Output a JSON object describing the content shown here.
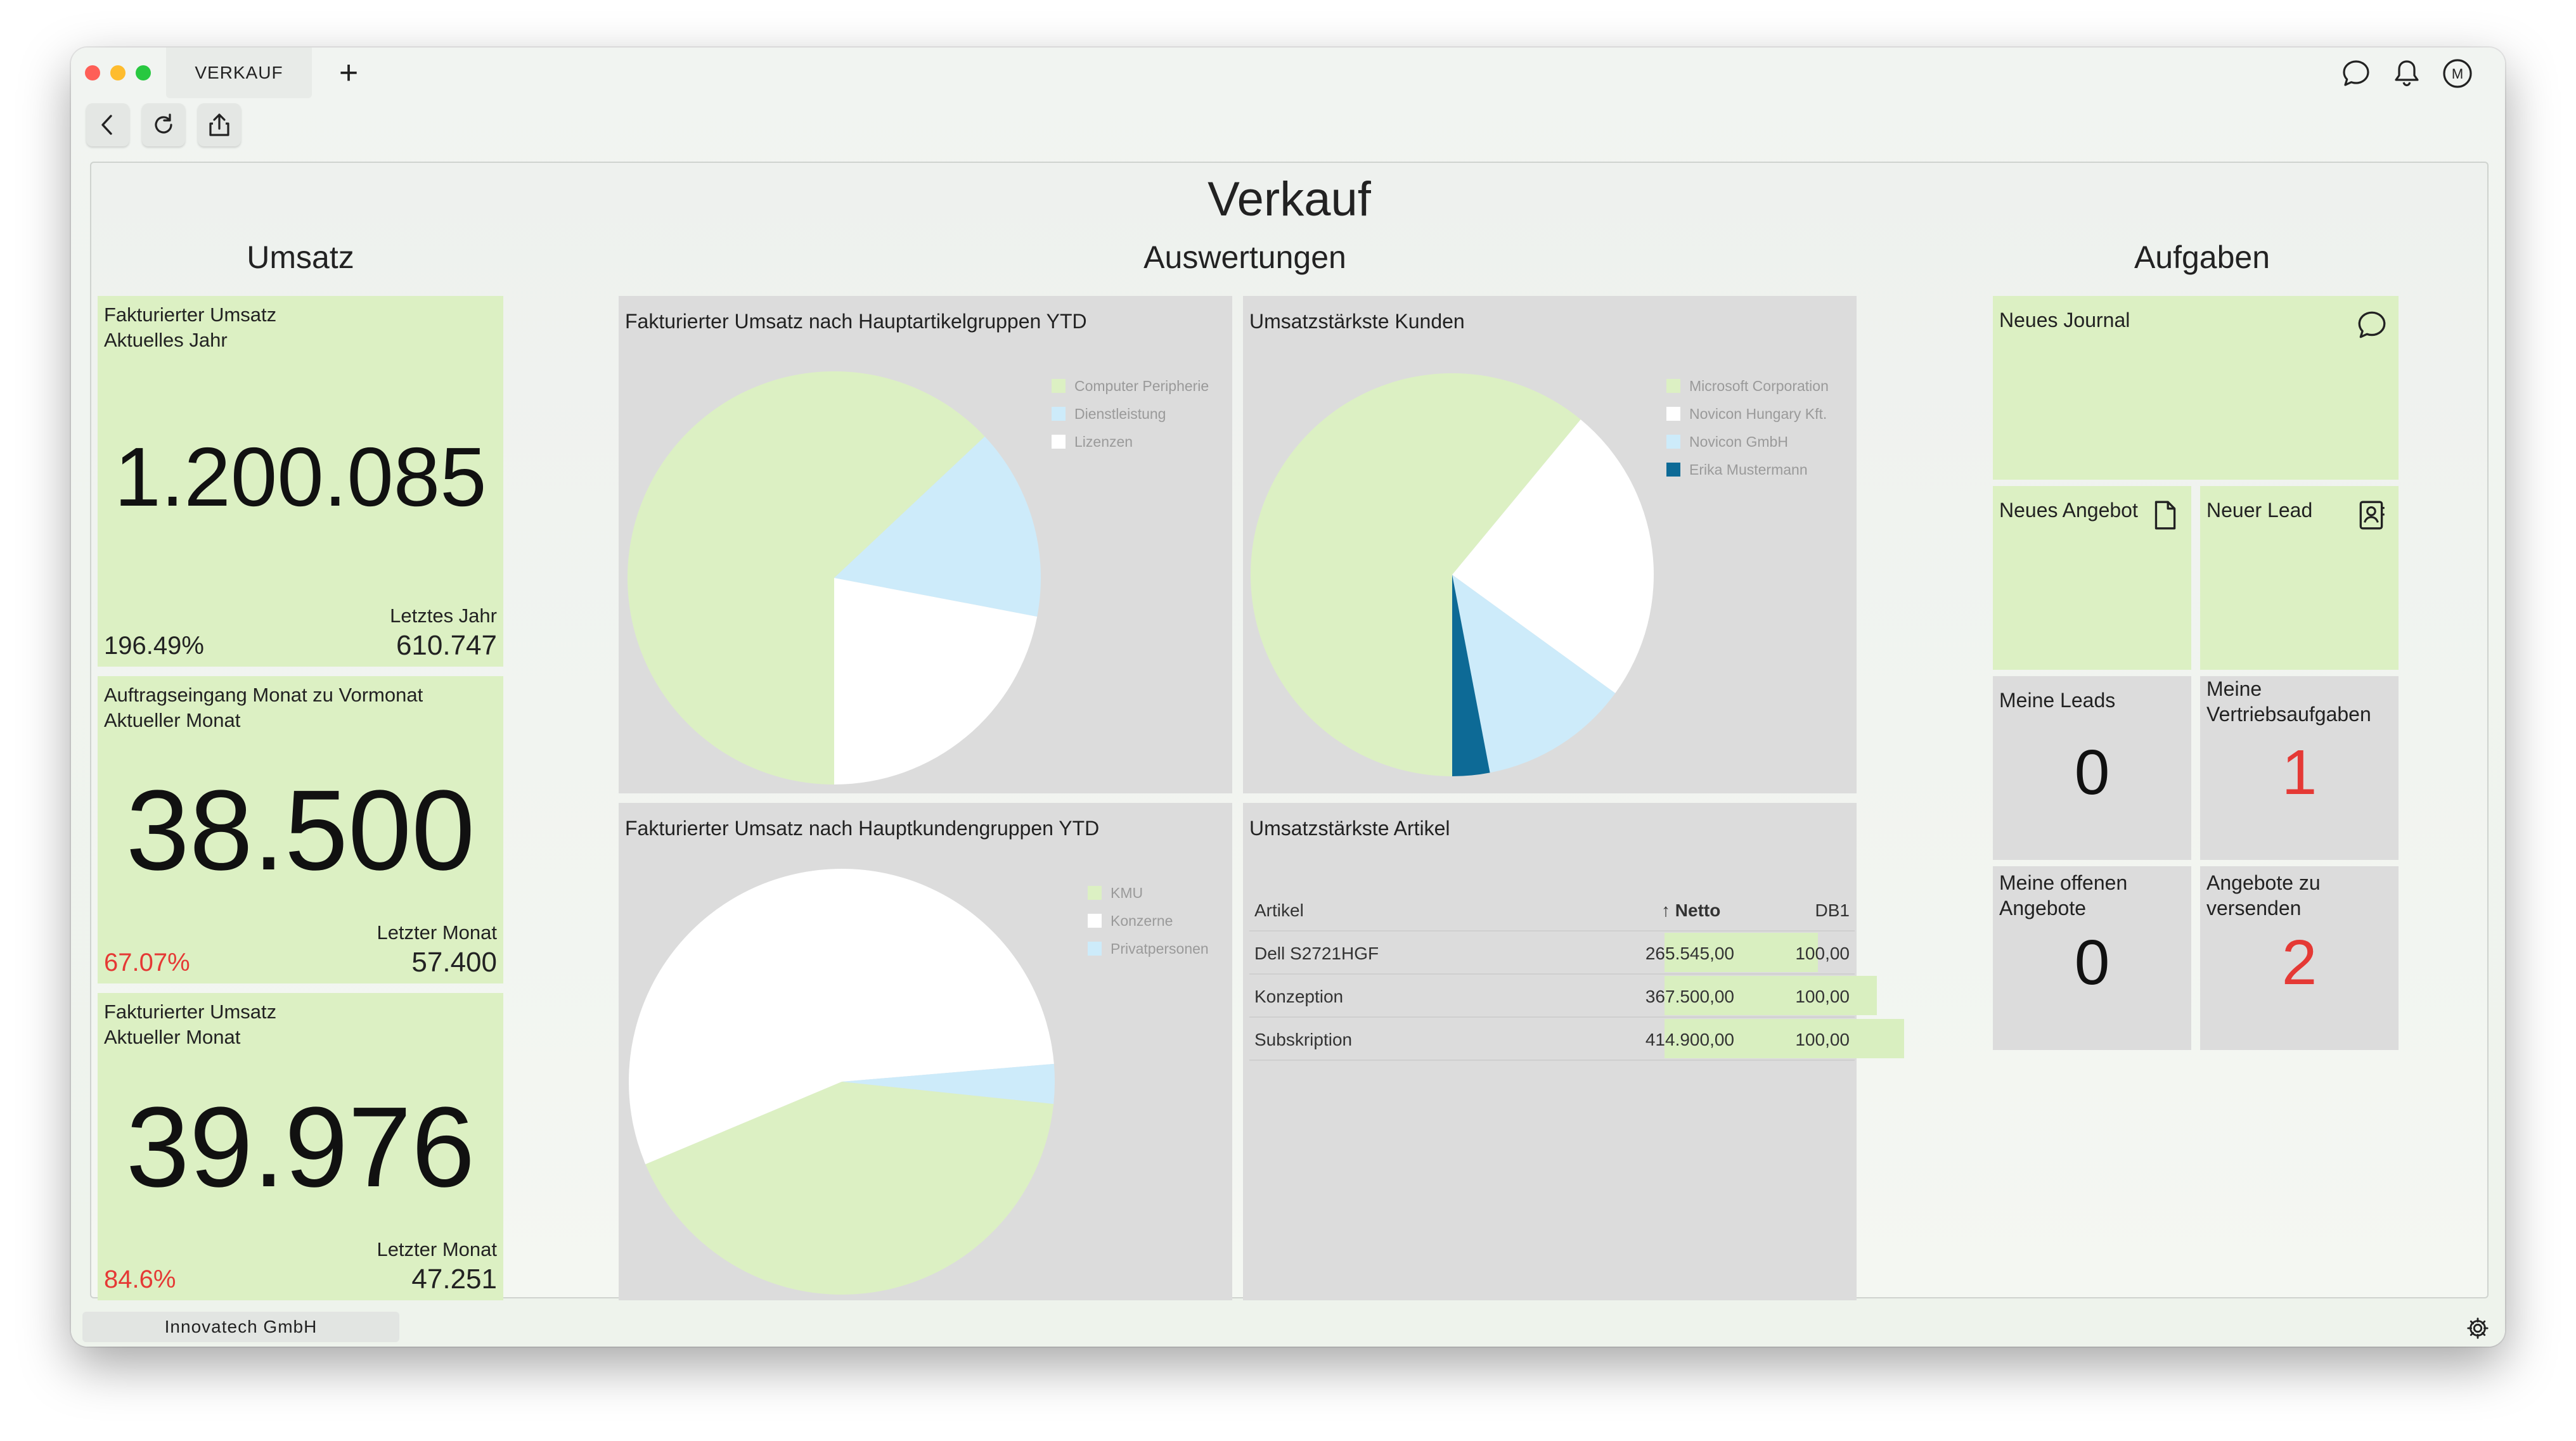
{
  "window": {
    "tab_title": "VERKAUF",
    "new_tab_icon": "plus-icon"
  },
  "toolbar": {
    "icons": [
      "back-icon",
      "reload-icon",
      "share-icon"
    ]
  },
  "header_icons": [
    "chat-icon",
    "bell-icon",
    "user-avatar-icon"
  ],
  "user": {
    "initial": "M"
  },
  "page": {
    "title": "Verkauf"
  },
  "sections": {
    "left": "Umsatz",
    "center": "Auswertungen",
    "right": "Aufgaben"
  },
  "kpis": [
    {
      "label": "Fakturierter Umsatz\nAktuelles Jahr",
      "value": "1.200.085",
      "percent": "196.49%",
      "percent_color": "#222222",
      "compare_label": "Letztes Jahr",
      "compare_value": "610.747"
    },
    {
      "label": "Auftragseingang Monat zu Vormonat\nAktueller Monat",
      "value": "38.500",
      "percent": "67.07%",
      "percent_color": "#e53935",
      "compare_label": "Letzter Monat",
      "compare_value": "57.400"
    },
    {
      "label": "Fakturierter Umsatz\nAktueller Monat",
      "value": "39.976",
      "percent": "84.6%",
      "percent_color": "#e53935",
      "compare_label": "Letzter Monat",
      "compare_value": "47.251"
    }
  ],
  "charts": {
    "articles_pie": {
      "title": "Fakturierter Umsatz nach Hauptartikelgruppen YTD",
      "legend": [
        {
          "name": "Computer Peripherie",
          "color": "#dcf0c3"
        },
        {
          "name": "Dienstleistung",
          "color": "#cdebfa"
        },
        {
          "name": "Lizenzen",
          "color": "#ffffff"
        }
      ]
    },
    "customers_pie": {
      "title": "Umsatzstärkste Kunden",
      "legend": [
        {
          "name": "Microsoft Corporation",
          "color": "#dcf0c3"
        },
        {
          "name": "Novicon Hungary Kft.",
          "color": "#ffffff"
        },
        {
          "name": "Novicon GmbH",
          "color": "#cdebfa"
        },
        {
          "name": "Erika Mustermann",
          "color": "#0d6a96"
        }
      ]
    },
    "customergroups_pie": {
      "title": "Fakturierter Umsatz nach Hauptkundengruppen YTD",
      "legend": [
        {
          "name": "KMU",
          "color": "#dcf0c3"
        },
        {
          "name": "Konzerne",
          "color": "#ffffff"
        },
        {
          "name": "Privatpersonen",
          "color": "#cdebfa"
        }
      ]
    }
  },
  "chart_data": [
    {
      "type": "pie",
      "title": "Fakturierter Umsatz nach Hauptartikelgruppen YTD",
      "categories": [
        "Computer Peripherie",
        "Dienstleistung",
        "Lizenzen"
      ],
      "values": [
        63,
        15,
        22
      ]
    },
    {
      "type": "pie",
      "title": "Umsatzstärkste Kunden",
      "categories": [
        "Microsoft Corporation",
        "Novicon Hungary Kft.",
        "Novicon GmbH",
        "Erika Mustermann"
      ],
      "values": [
        61,
        24,
        12,
        3
      ]
    },
    {
      "type": "pie",
      "title": "Fakturierter Umsatz nach Hauptkundengruppen YTD",
      "categories": [
        "KMU",
        "Konzerne",
        "Privatpersonen"
      ],
      "values": [
        42,
        55,
        3
      ]
    }
  ],
  "top_articles": {
    "title": "Umsatzstärkste Artikel",
    "columns": {
      "article": "Artikel",
      "net": "↑ Netto",
      "db": "DB1"
    },
    "max_net": 414900,
    "rows": [
      {
        "article": "Dell S2721HGF",
        "net": "265.545,00",
        "net_value": 265545,
        "db": "100,00"
      },
      {
        "article": "Konzeption",
        "net": "367.500,00",
        "net_value": 367500,
        "db": "100,00"
      },
      {
        "article": "Subskription",
        "net": "414.900,00",
        "net_value": 414900,
        "db": "100,00"
      }
    ]
  },
  "tasks": {
    "new_journal": {
      "label": "Neues Journal",
      "icon": "chat-icon"
    },
    "new_offer": {
      "label": "Neues Angebot",
      "icon": "document-icon"
    },
    "new_lead": {
      "label": "Neuer Lead",
      "icon": "contact-card-icon"
    },
    "my_leads": {
      "label": "Meine Leads",
      "count": "0"
    },
    "my_sales_tasks": {
      "label": "Meine\nVertriebsaufgaben",
      "count": "1"
    },
    "my_open_offers": {
      "label": "Meine offenen\nAngebote",
      "count": "0"
    },
    "offers_to_send": {
      "label": "Angebote zu\nversenden",
      "count": "2"
    }
  },
  "colors": {
    "kpi_bg": "#dcf0c3",
    "panel_bg": "#dcdcdc",
    "alert_red": "#e53935"
  },
  "footer": {
    "company": "Innovatech GmbH",
    "settings_icon": "gear-icon"
  }
}
